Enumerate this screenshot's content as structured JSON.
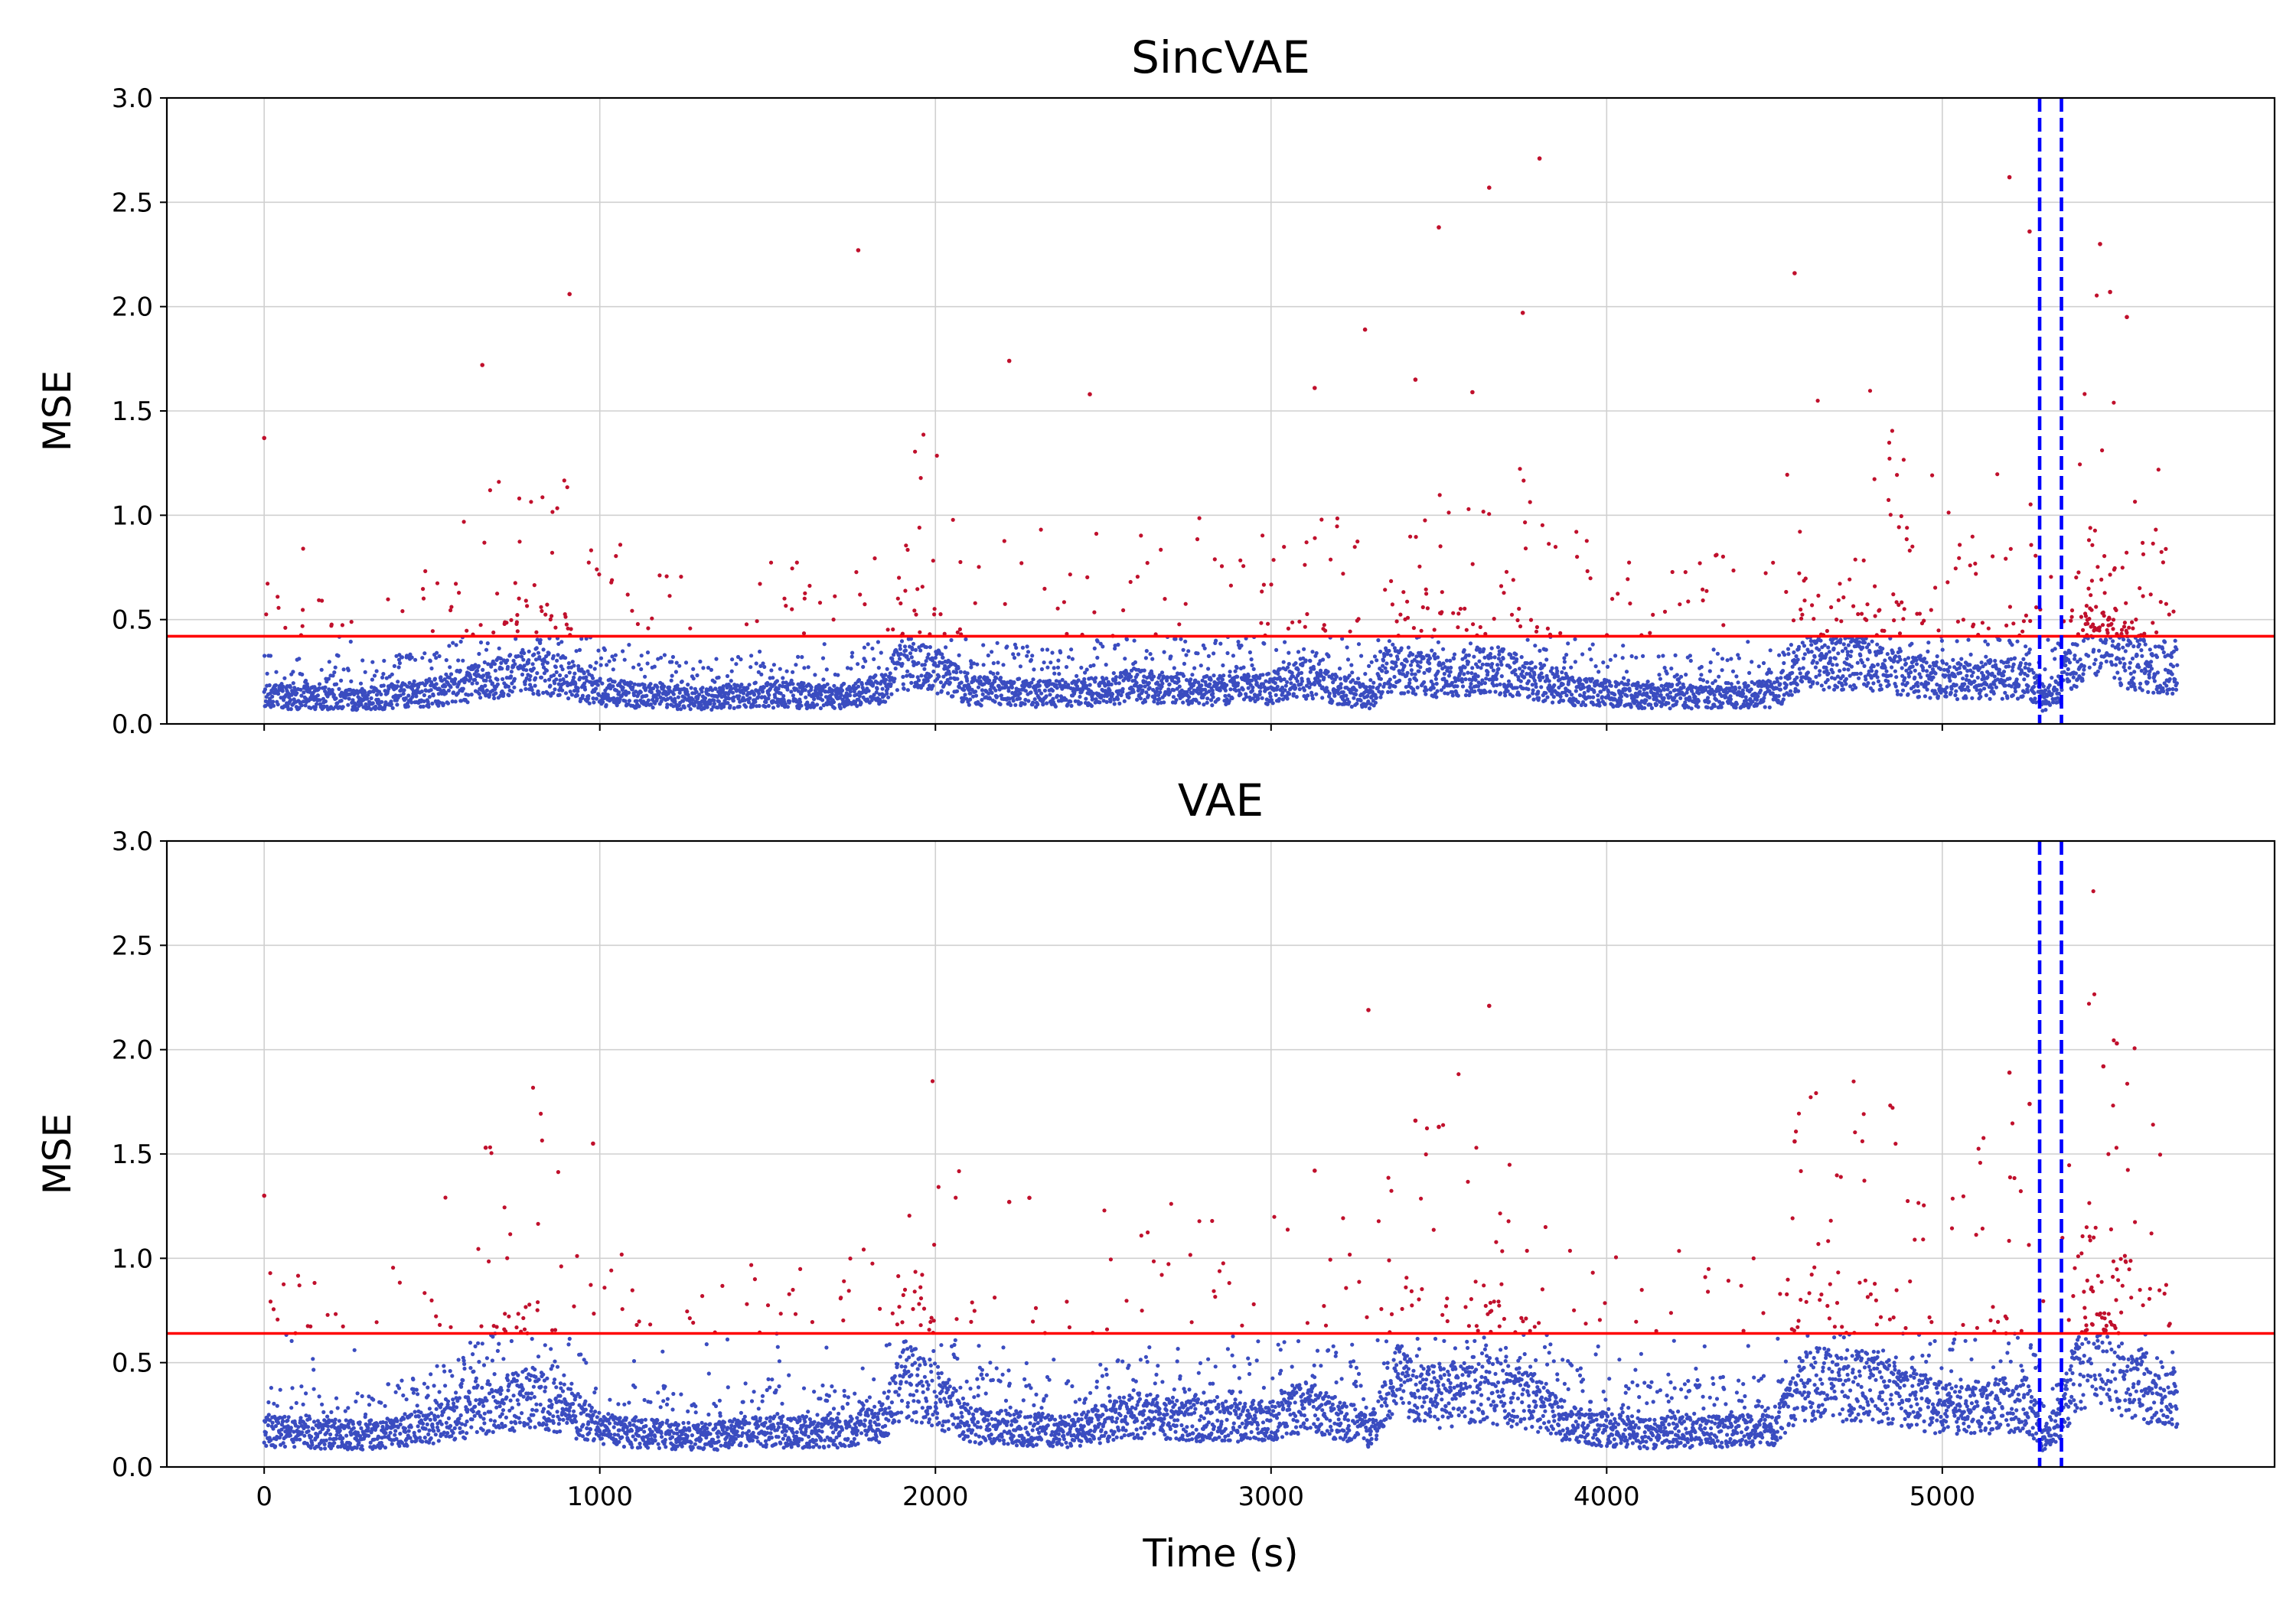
{
  "colors": {
    "normal_points": "#3a4cc0",
    "anomaly_points": "#c0102c",
    "threshold_line": "#ff0000",
    "event_lines": "#0000ff",
    "grid": "#d0d0d0"
  },
  "chart_data": [
    {
      "type": "scatter",
      "title": "SincVAE",
      "xlabel": "",
      "ylabel": "MSE",
      "xlim": [
        -290,
        5990
      ],
      "ylim": [
        0,
        3.0
      ],
      "x_ticks": [
        0,
        1000,
        2000,
        3000,
        4000,
        5000
      ],
      "y_ticks": [
        0.0,
        0.5,
        1.0,
        1.5,
        2.0,
        2.5,
        3.0
      ],
      "grid": true,
      "threshold": 0.42,
      "event_lines_x": [
        5290,
        5355
      ],
      "n_points": 5700,
      "baseline_profile": [
        [
          0,
          0.13
        ],
        [
          300,
          0.12
        ],
        [
          500,
          0.15
        ],
        [
          700,
          0.22
        ],
        [
          800,
          0.26
        ],
        [
          900,
          0.22
        ],
        [
          1000,
          0.15
        ],
        [
          1300,
          0.12
        ],
        [
          1500,
          0.14
        ],
        [
          1700,
          0.13
        ],
        [
          1850,
          0.17
        ],
        [
          1900,
          0.3
        ],
        [
          2000,
          0.25
        ],
        [
          2100,
          0.16
        ],
        [
          2400,
          0.14
        ],
        [
          2600,
          0.18
        ],
        [
          2800,
          0.16
        ],
        [
          3000,
          0.17
        ],
        [
          3100,
          0.22
        ],
        [
          3300,
          0.12
        ],
        [
          3350,
          0.28
        ],
        [
          3500,
          0.22
        ],
        [
          3650,
          0.27
        ],
        [
          3800,
          0.2
        ],
        [
          3900,
          0.16
        ],
        [
          4100,
          0.13
        ],
        [
          4500,
          0.14
        ],
        [
          4600,
          0.3
        ],
        [
          4800,
          0.28
        ],
        [
          5000,
          0.2
        ],
        [
          5250,
          0.22
        ],
        [
          5300,
          0.14
        ],
        [
          5360,
          0.22
        ],
        [
          5450,
          0.42
        ],
        [
          5550,
          0.3
        ],
        [
          5700,
          0.24
        ]
      ],
      "notable_points": [
        {
          "x": 0,
          "y": 1.37
        },
        {
          "x": 650,
          "y": 1.72
        },
        {
          "x": 910,
          "y": 2.06
        },
        {
          "x": 1770,
          "y": 2.27
        },
        {
          "x": 2220,
          "y": 1.74
        },
        {
          "x": 3500,
          "y": 2.38
        },
        {
          "x": 3650,
          "y": 2.57
        },
        {
          "x": 3800,
          "y": 2.71
        },
        {
          "x": 3750,
          "y": 1.97
        },
        {
          "x": 4560,
          "y": 2.16
        },
        {
          "x": 5200,
          "y": 2.62
        },
        {
          "x": 5260,
          "y": 2.36
        },
        {
          "x": 5470,
          "y": 2.3
        },
        {
          "x": 5500,
          "y": 2.07
        },
        {
          "x": 5550,
          "y": 1.95
        },
        {
          "x": 3430,
          "y": 1.65
        },
        {
          "x": 3600,
          "y": 1.59
        },
        {
          "x": 3130,
          "y": 1.61
        },
        {
          "x": 3280,
          "y": 1.89
        },
        {
          "x": 2460,
          "y": 1.58
        }
      ]
    },
    {
      "type": "scatter",
      "title": "VAE",
      "xlabel": "Time (s)",
      "ylabel": "MSE",
      "xlim": [
        -290,
        5990
      ],
      "ylim": [
        0,
        3.0
      ],
      "x_ticks": [
        0,
        1000,
        2000,
        3000,
        4000,
        5000
      ],
      "y_ticks": [
        0.0,
        0.5,
        1.0,
        1.5,
        2.0,
        2.5,
        3.0
      ],
      "grid": true,
      "threshold": 0.64,
      "event_lines_x": [
        5290,
        5355
      ],
      "n_points": 5700,
      "baseline_profile": [
        [
          0,
          0.17
        ],
        [
          300,
          0.15
        ],
        [
          500,
          0.2
        ],
        [
          700,
          0.3
        ],
        [
          800,
          0.33
        ],
        [
          900,
          0.27
        ],
        [
          1000,
          0.18
        ],
        [
          1300,
          0.14
        ],
        [
          1500,
          0.17
        ],
        [
          1700,
          0.16
        ],
        [
          1850,
          0.22
        ],
        [
          1900,
          0.42
        ],
        [
          2000,
          0.35
        ],
        [
          2100,
          0.2
        ],
        [
          2400,
          0.17
        ],
        [
          2600,
          0.25
        ],
        [
          2800,
          0.22
        ],
        [
          3000,
          0.22
        ],
        [
          3100,
          0.3
        ],
        [
          3300,
          0.17
        ],
        [
          3350,
          0.42
        ],
        [
          3500,
          0.33
        ],
        [
          3650,
          0.38
        ],
        [
          3800,
          0.3
        ],
        [
          3900,
          0.2
        ],
        [
          4100,
          0.16
        ],
        [
          4500,
          0.18
        ],
        [
          4600,
          0.4
        ],
        [
          4800,
          0.38
        ],
        [
          5000,
          0.28
        ],
        [
          5250,
          0.3
        ],
        [
          5300,
          0.17
        ],
        [
          5360,
          0.3
        ],
        [
          5450,
          0.58
        ],
        [
          5550,
          0.42
        ],
        [
          5700,
          0.32
        ]
      ],
      "notable_points": [
        {
          "x": 0,
          "y": 1.3
        },
        {
          "x": 660,
          "y": 1.53
        },
        {
          "x": 980,
          "y": 1.55
        },
        {
          "x": 3290,
          "y": 2.19
        },
        {
          "x": 3650,
          "y": 2.21
        },
        {
          "x": 3430,
          "y": 1.66
        },
        {
          "x": 3500,
          "y": 1.63
        },
        {
          "x": 4560,
          "y": 1.56
        },
        {
          "x": 5200,
          "y": 1.89
        },
        {
          "x": 5520,
          "y": 2.03
        },
        {
          "x": 5480,
          "y": 1.92
        },
        {
          "x": 3130,
          "y": 1.42
        },
        {
          "x": 2280,
          "y": 1.29
        },
        {
          "x": 2220,
          "y": 1.27
        },
        {
          "x": 5260,
          "y": 1.74
        }
      ]
    }
  ]
}
